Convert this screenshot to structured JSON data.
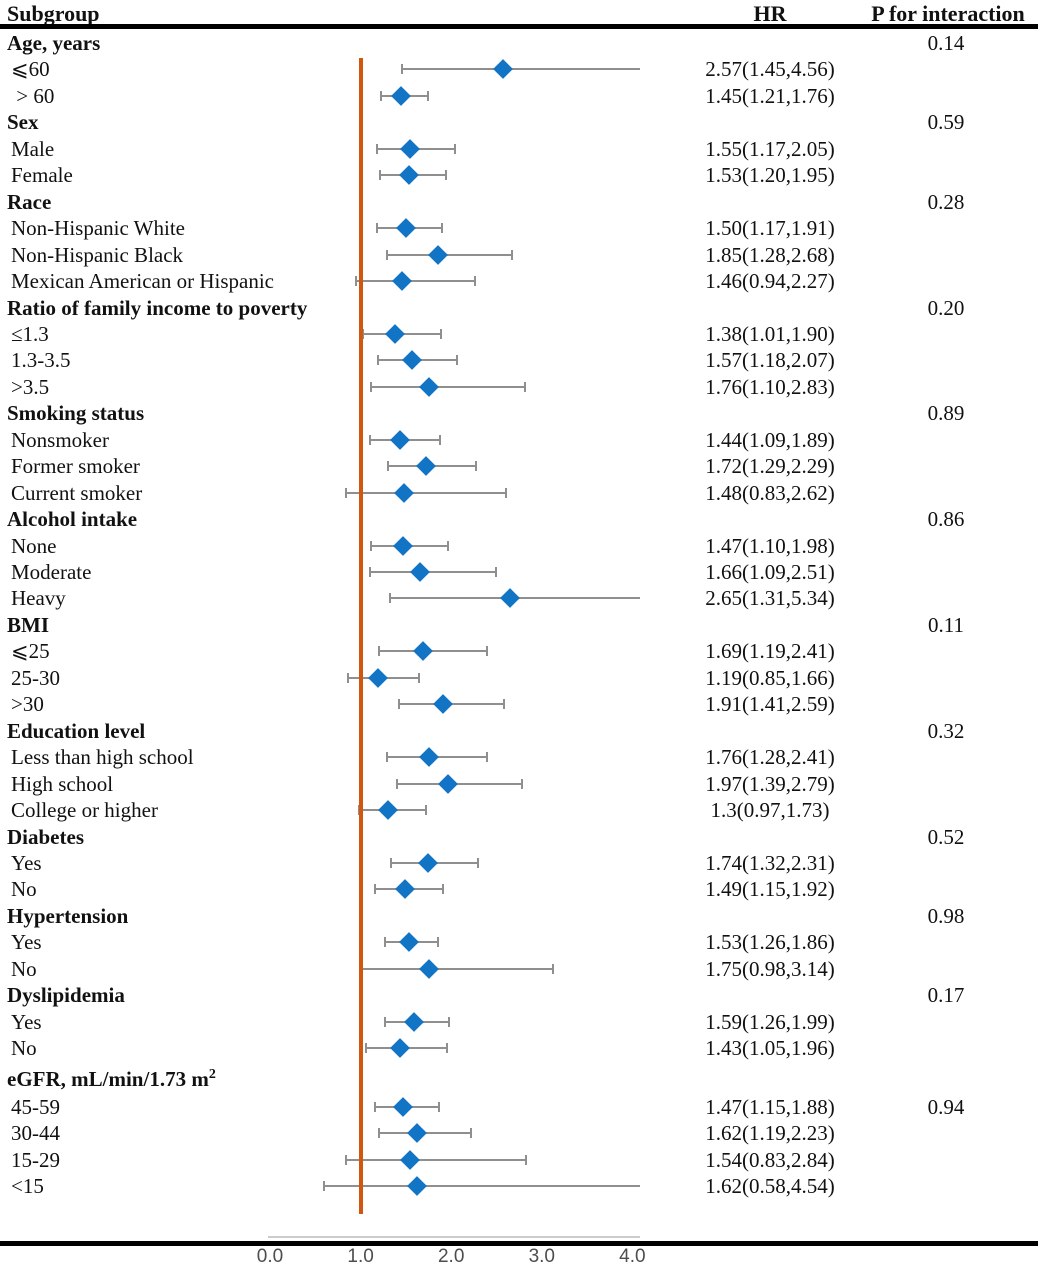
{
  "header": {
    "subgroup": "Subgroup",
    "hr": "HR",
    "p": "P for interaction"
  },
  "colors": {
    "diamond": "#1274c5",
    "ref_line": "#d2570e",
    "whisker": "#8f8f8f",
    "axis_text": "#4d4d4d",
    "rule": "#000000"
  },
  "chart_data": {
    "type": "forest",
    "title": "",
    "xlabel": "",
    "xlim": [
      0,
      4
    ],
    "xticks": [
      0,
      1,
      2,
      3,
      4
    ],
    "xtick_labels": [
      "0.0",
      "1.0",
      "2.0",
      "3.0",
      "4.0"
    ],
    "reference_value": 1.0,
    "rows": [
      {
        "label": "Age, years",
        "bold": true,
        "p": "0.14"
      },
      {
        "label": "⩽60",
        "hr_text": "2.57(1.45,4.56)",
        "hr": 2.57,
        "lo": 1.45,
        "hi": 4.56
      },
      {
        "label": " > 60",
        "hr_text": "1.45(1.21,1.76)",
        "hr": 1.45,
        "lo": 1.21,
        "hi": 1.76
      },
      {
        "label": "Sex",
        "bold": true,
        "p": "0.59"
      },
      {
        "label": "Male",
        "hr_text": "1.55(1.17,2.05)",
        "hr": 1.55,
        "lo": 1.17,
        "hi": 2.05
      },
      {
        "label": "Female",
        "hr_text": "1.53(1.20,1.95)",
        "hr": 1.53,
        "lo": 1.2,
        "hi": 1.95
      },
      {
        "label": "Race",
        "bold": true,
        "p": "0.28"
      },
      {
        "label": "Non-Hispanic White",
        "hr_text": "1.50(1.17,1.91)",
        "hr": 1.5,
        "lo": 1.17,
        "hi": 1.91
      },
      {
        "label": "Non-Hispanic Black",
        "hr_text": "1.85(1.28,2.68)",
        "hr": 1.85,
        "lo": 1.28,
        "hi": 2.68
      },
      {
        "label": "Mexican American or Hispanic",
        "hr_text": "1.46(0.94,2.27)",
        "hr": 1.46,
        "lo": 0.94,
        "hi": 2.27
      },
      {
        "label": "Ratio of family income to poverty",
        "bold": true,
        "p": "0.20"
      },
      {
        "label": "≤1.3",
        "hr_text": "1.38(1.01,1.90)",
        "hr": 1.38,
        "lo": 1.01,
        "hi": 1.9
      },
      {
        "label": "1.3-3.5",
        "hr_text": "1.57(1.18,2.07)",
        "hr": 1.57,
        "lo": 1.18,
        "hi": 2.07
      },
      {
        "label": ">3.5",
        "hr_text": "1.76(1.10,2.83)",
        "hr": 1.76,
        "lo": 1.1,
        "hi": 2.83
      },
      {
        "label": "Smoking status",
        "bold": true,
        "p": "0.89"
      },
      {
        "label": "Nonsmoker",
        "hr_text": "1.44(1.09,1.89)",
        "hr": 1.44,
        "lo": 1.09,
        "hi": 1.89
      },
      {
        "label": "Former smoker",
        "hr_text": "1.72(1.29,2.29)",
        "hr": 1.72,
        "lo": 1.29,
        "hi": 2.29
      },
      {
        "label": "Current smoker",
        "hr_text": "1.48(0.83,2.62)",
        "hr": 1.48,
        "lo": 0.83,
        "hi": 2.62
      },
      {
        "label": "Alcohol intake",
        "bold": true,
        "p": "0.86"
      },
      {
        "label": "None",
        "hr_text": "1.47(1.10,1.98)",
        "hr": 1.47,
        "lo": 1.1,
        "hi": 1.98
      },
      {
        "label": "Moderate",
        "hr_text": "1.66(1.09,2.51)",
        "hr": 1.66,
        "lo": 1.09,
        "hi": 2.51
      },
      {
        "label": "Heavy",
        "hr_text": "2.65(1.31,5.34)",
        "hr": 2.65,
        "lo": 1.31,
        "hi": 5.34
      },
      {
        "label": "BMI",
        "bold": true,
        "p": "0.11"
      },
      {
        "label": "⩽25",
        "hr_text": "1.69(1.19,2.41)",
        "hr": 1.69,
        "lo": 1.19,
        "hi": 2.41
      },
      {
        "label": "25-30",
        "hr_text": "1.19(0.85,1.66)",
        "hr": 1.19,
        "lo": 0.85,
        "hi": 1.66
      },
      {
        "label": ">30",
        "hr_text": "1.91(1.41,2.59)",
        "hr": 1.91,
        "lo": 1.41,
        "hi": 2.59
      },
      {
        "label": "Education level",
        "bold": true,
        "p": "0.32"
      },
      {
        "label": "Less than high school",
        "hr_text": "1.76(1.28,2.41)",
        "hr": 1.76,
        "lo": 1.28,
        "hi": 2.41
      },
      {
        "label": "High school",
        "hr_text": "1.97(1.39,2.79)",
        "hr": 1.97,
        "lo": 1.39,
        "hi": 2.79
      },
      {
        "label": "College or higher",
        "hr_text": "1.3(0.97,1.73)",
        "hr": 1.3,
        "lo": 0.97,
        "hi": 1.73
      },
      {
        "label": "Diabetes",
        "bold": true,
        "p": "0.52"
      },
      {
        "label": "Yes",
        "hr_text": "1.74(1.32,2.31)",
        "hr": 1.74,
        "lo": 1.32,
        "hi": 2.31
      },
      {
        "label": "No",
        "hr_text": "1.49(1.15,1.92)",
        "hr": 1.49,
        "lo": 1.15,
        "hi": 1.92
      },
      {
        "label": "Hypertension",
        "bold": true,
        "p": "0.98"
      },
      {
        "label": "Yes",
        "hr_text": "1.53(1.26,1.86)",
        "hr": 1.53,
        "lo": 1.26,
        "hi": 1.86
      },
      {
        "label": "No",
        "hr_text": "1.75(0.98,3.14)",
        "hr": 1.75,
        "lo": 0.98,
        "hi": 3.14
      },
      {
        "label": "Dyslipidemia",
        "bold": true,
        "p": "0.17"
      },
      {
        "label": "Yes",
        "hr_text": "1.59(1.26,1.99)",
        "hr": 1.59,
        "lo": 1.26,
        "hi": 1.99
      },
      {
        "label": "No",
        "hr_text": "1.43(1.05,1.96)",
        "hr": 1.43,
        "lo": 1.05,
        "hi": 1.96
      },
      {
        "label": "eGFR, mL/min/1.73 m",
        "sup": "2",
        "bold": true
      },
      {
        "label": "45-59",
        "hr_text": "1.47(1.15,1.88)",
        "hr": 1.47,
        "lo": 1.15,
        "hi": 1.88,
        "p": "0.94"
      },
      {
        "label": "30-44",
        "hr_text": "1.62(1.19,2.23)",
        "hr": 1.62,
        "lo": 1.19,
        "hi": 2.23
      },
      {
        "label": "15-29",
        "hr_text": "1.54(0.83,2.84)",
        "hr": 1.54,
        "lo": 0.83,
        "hi": 2.84
      },
      {
        "label": "<15",
        "hr_text": "1.62(0.58,4.54)",
        "hr": 1.62,
        "lo": 0.58,
        "hi": 4.54
      }
    ]
  }
}
